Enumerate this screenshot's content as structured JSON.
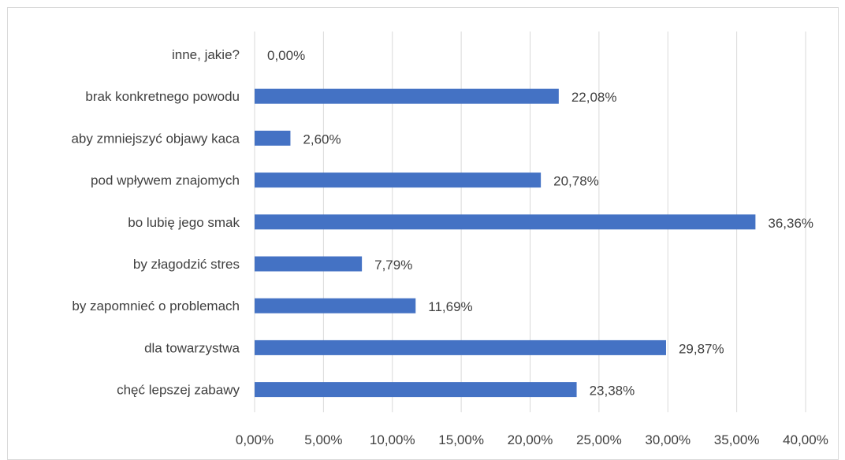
{
  "chart_data": {
    "type": "bar",
    "orientation": "horizontal",
    "categories": [
      "inne, jakie?",
      "brak konkretnego powodu",
      "aby zmniejszyć objawy kaca",
      "pod wpływem znajomych",
      "bo lubię jego smak",
      "by złagodzić stres",
      "by zapomnieć o problemach",
      "dla towarzystwa",
      "chęć lepszej zabawy"
    ],
    "values": [
      0.0,
      22.08,
      2.6,
      20.78,
      36.36,
      7.79,
      11.69,
      29.87,
      23.38
    ],
    "data_labels": [
      "0,00%",
      "22,08%",
      "2,60%",
      "20,78%",
      "36,36%",
      "7,79%",
      "11,69%",
      "29,87%",
      "23,38%"
    ],
    "xlim": [
      0,
      40
    ],
    "x_ticks": [
      0,
      5,
      10,
      15,
      20,
      25,
      30,
      35,
      40
    ],
    "x_tick_labels": [
      "0,00%",
      "5,00%",
      "10,00%",
      "15,00%",
      "20,00%",
      "25,00%",
      "30,00%",
      "35,00%",
      "40,00%"
    ],
    "grid": true,
    "legend": "none",
    "bar_color": "#4472c4",
    "gridline_color": "#d9d9d9",
    "text_color": "#404040"
  }
}
